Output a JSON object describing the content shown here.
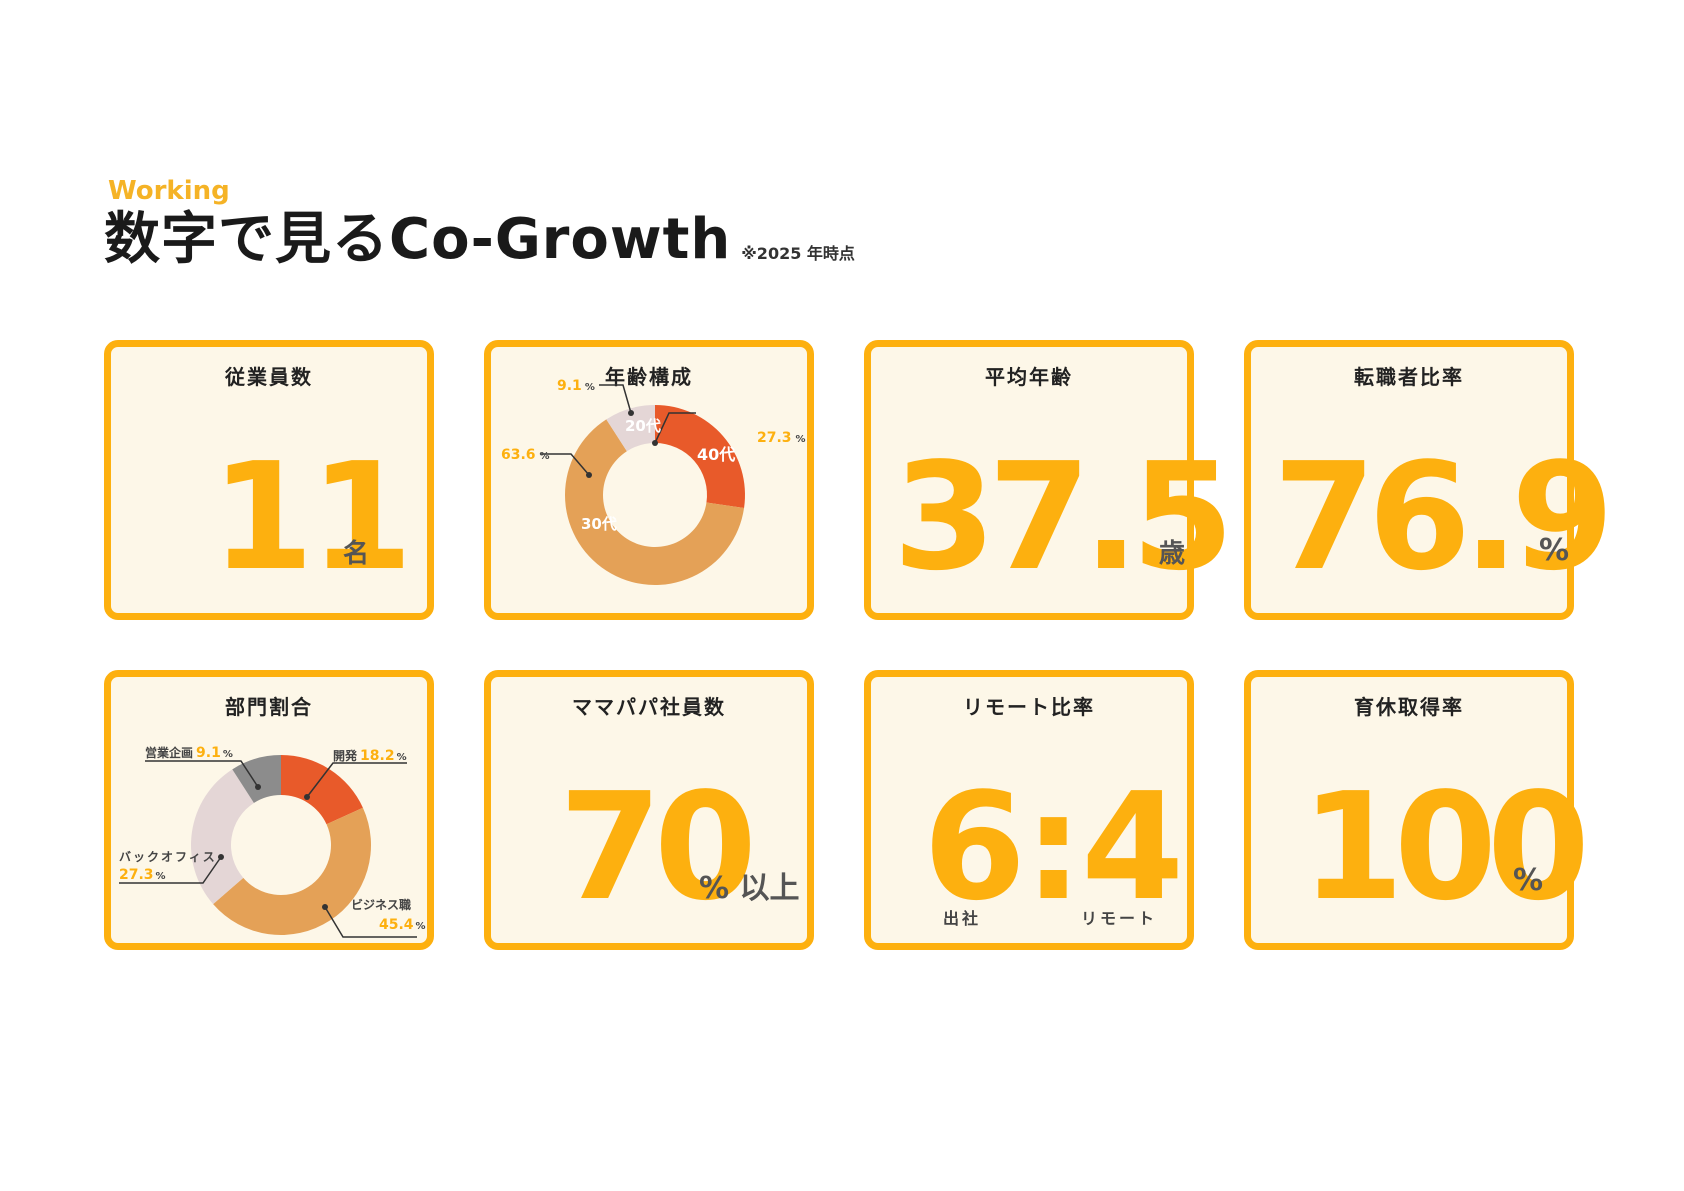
{
  "header": {
    "eyebrow": "Working",
    "title": "数字で見るCo-Growth",
    "note": "※2025 年時点"
  },
  "colors": {
    "accent": "#FDB00F",
    "card_bg": "#FDF7E8",
    "orange_red": "#E85A2A",
    "tan": "#E4A157",
    "light_pink": "#E4D6D6",
    "gray": "#8C8C8C"
  },
  "cards": {
    "employees": {
      "label": "従業員数",
      "value": "11",
      "unit": "名"
    },
    "age_comp": {
      "label": "年齢構成",
      "slices": [
        {
          "name": "40代",
          "num": "27.3",
          "pct": "%"
        },
        {
          "name": "30代",
          "num": "63.6",
          "pct": "%"
        },
        {
          "name": "20代",
          "num": "9.1",
          "pct": "%"
        }
      ]
    },
    "avg_age": {
      "label": "平均年齢",
      "value": "37.5",
      "unit": "歳"
    },
    "career_change": {
      "label": "転職者比率",
      "value": "76.9",
      "unit": "%"
    },
    "departments": {
      "label": "部門割合",
      "slices": [
        {
          "name": "開発",
          "num": "18.2",
          "pct": "%"
        },
        {
          "name": "ビジネス職",
          "num": "45.4",
          "pct": "%"
        },
        {
          "name": "バックオフィス",
          "num": "27.3",
          "pct": "%"
        },
        {
          "name": "営業企画",
          "num": "9.1",
          "pct": "%"
        }
      ]
    },
    "parents": {
      "label": "ママパパ社員数",
      "value": "70",
      "unit": "% 以上"
    },
    "remote": {
      "label": "リモート比率",
      "value": "6:4",
      "left_label": "出社",
      "right_label": "リモート"
    },
    "childcare": {
      "label": "育休取得率",
      "value": "100",
      "unit": "%"
    }
  },
  "chart_data": [
    {
      "type": "pie",
      "title": "年齢構成",
      "categories": [
        "40代",
        "30代",
        "20代"
      ],
      "values": [
        27.3,
        63.6,
        9.1
      ]
    },
    {
      "type": "pie",
      "title": "部門割合",
      "categories": [
        "開発",
        "ビジネス職",
        "バックオフィス",
        "営業企画"
      ],
      "values": [
        18.2,
        45.4,
        27.3,
        9.1
      ]
    }
  ]
}
